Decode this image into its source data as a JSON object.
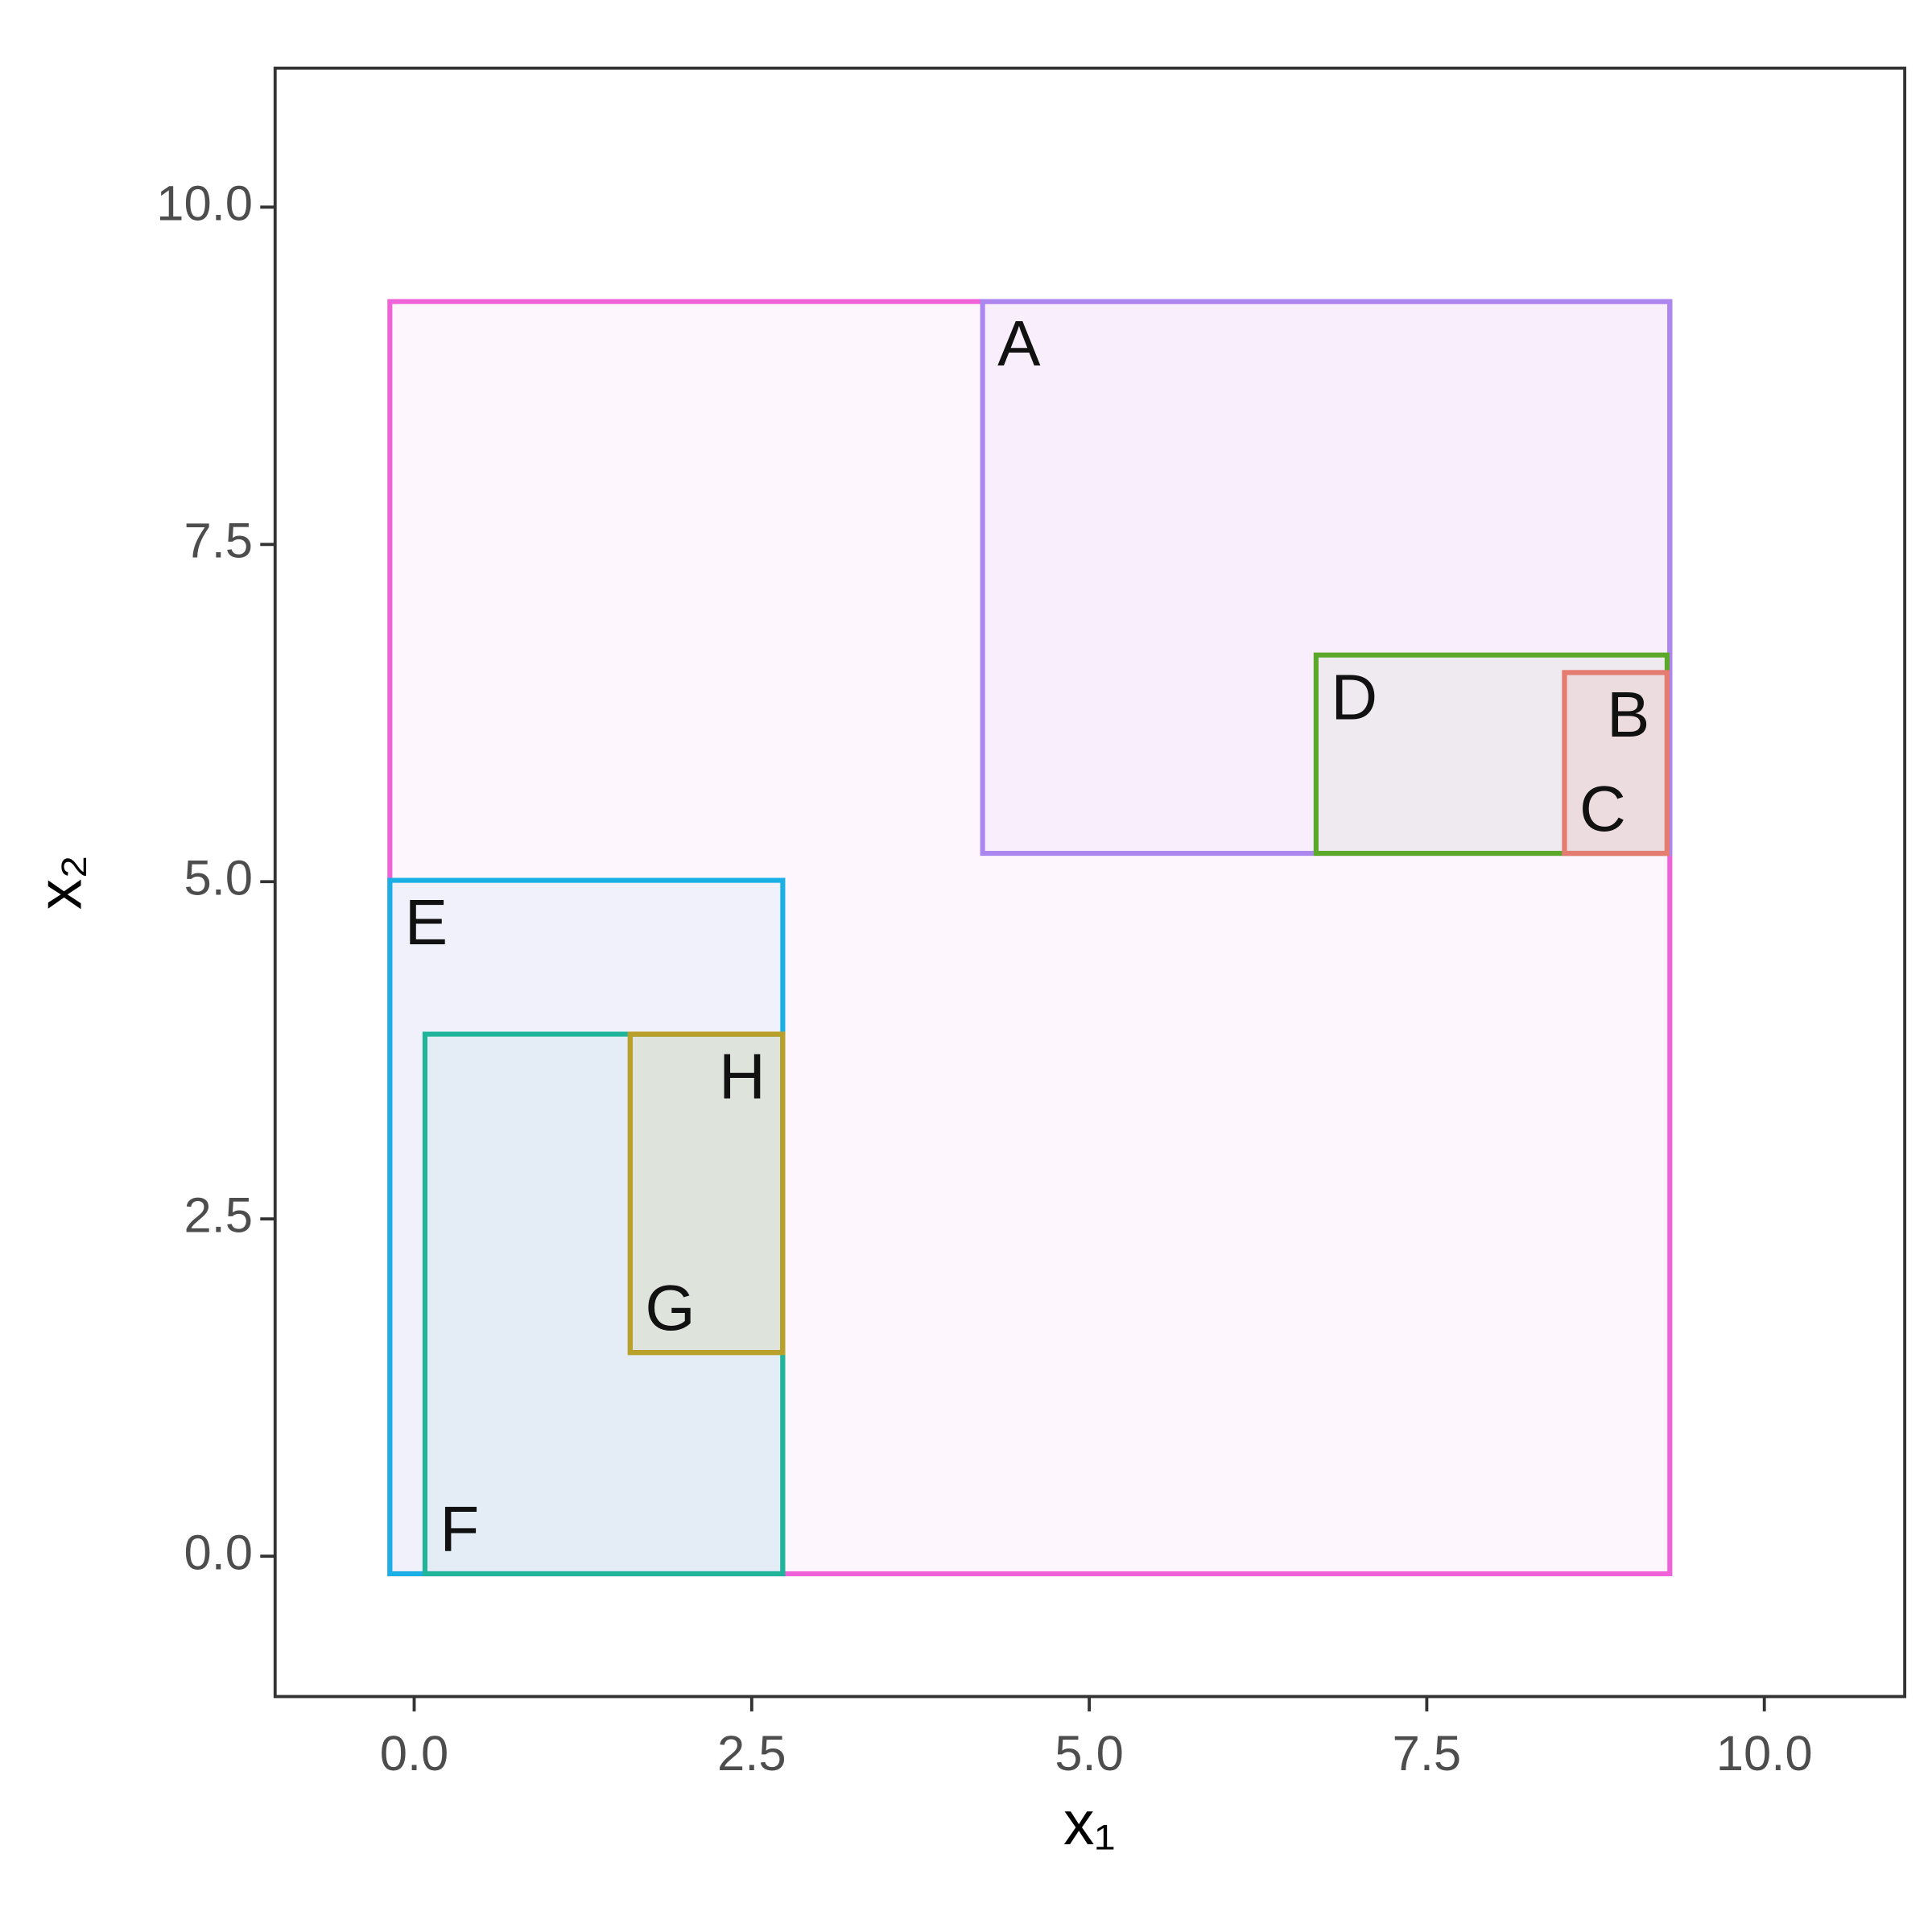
{
  "chart_data": {
    "type": "boxes",
    "xlabel": "x₁",
    "ylabel": "x₂",
    "xlim": [
      -1.03,
      11.04
    ],
    "ylim": [
      -1.04,
      11.03
    ],
    "xticks": [
      {
        "value": 0,
        "label": "0.0"
      },
      2.5,
      {
        "value": 5,
        "label": "5.0"
      },
      7.5,
      {
        "value": 10,
        "label": "10.0"
      }
    ],
    "yticks": [
      {
        "value": 0,
        "label": "0.0"
      },
      2.5,
      {
        "value": 5,
        "label": "5.0"
      },
      7.5,
      {
        "value": 10,
        "label": "10.0"
      }
    ],
    "boxes": [
      {
        "color": "#f062d8",
        "x": [
          -0.18,
          9.3
        ],
        "y": [
          -0.13,
          9.3
        ]
      },
      {
        "label": "A",
        "label_corner": "top-left",
        "color": "#ad87f0",
        "x": [
          4.21,
          9.3
        ],
        "y": [
          5.21,
          9.3
        ]
      },
      {
        "label": "D",
        "label_corner": "top-left",
        "color": "#5ba82a",
        "x": [
          6.68,
          9.28
        ],
        "y": [
          5.21,
          6.68
        ]
      },
      {
        "label": "B",
        "label_corner": "top-right",
        "color": "#e57c72",
        "x": [
          8.52,
          9.28
        ],
        "y": [
          5.21,
          6.55
        ]
      },
      {
        "label": "C",
        "label_corner": "bottom-left",
        "color": "#e57c72",
        "x": [
          8.52,
          9.28
        ],
        "y": [
          5.21,
          6.55
        ]
      },
      {
        "label": "E",
        "label_corner": "top-left",
        "color": "#1ab0e5",
        "x": [
          -0.18,
          2.73
        ],
        "y": [
          -0.13,
          5.01
        ]
      },
      {
        "label": "F",
        "label_corner": "bottom-left",
        "color": "#20b59a",
        "x": [
          0.08,
          2.73
        ],
        "y": [
          -0.13,
          3.87
        ]
      },
      {
        "label": "G",
        "label_corner": "bottom-left",
        "color": "#b8a02a",
        "x": [
          1.6,
          2.73
        ],
        "y": [
          1.51,
          3.87
        ]
      },
      {
        "label": "H",
        "label_corner": "top-right",
        "color": "#b8a02a",
        "x": [
          1.6,
          2.73
        ],
        "y": [
          1.51,
          3.87
        ]
      }
    ]
  }
}
